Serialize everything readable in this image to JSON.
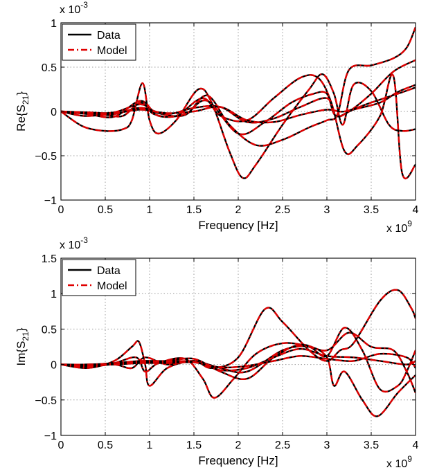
{
  "colors": {
    "data_line": "#000000",
    "model_line": "#e00000",
    "grid": "#9a9a9a",
    "background": "#ffffff"
  },
  "chart_data": [
    {
      "id": "re-s21",
      "type": "line",
      "ylabel_main": "Re{S",
      "ylabel_sub": "21",
      "ylabel_end": "}",
      "xlabel": "Frequency [Hz]",
      "y_exponent_base": "x 10",
      "y_exponent_power": "-3",
      "x_exponent_base": "x 10",
      "x_exponent_power": "9",
      "xlim": [
        0,
        4
      ],
      "ylim": [
        -1,
        1
      ],
      "xticks": [
        0,
        0.5,
        1,
        1.5,
        2,
        2.5,
        3,
        3.5,
        4
      ],
      "yticks": [
        -1,
        -0.5,
        0,
        0.5,
        1
      ],
      "xtick_labels": [
        "0",
        "0.5",
        "1",
        "1.5",
        "2",
        "2.5",
        "3",
        "3.5",
        "4"
      ],
      "ytick_labels": [
        "−1",
        "−0.5",
        "0",
        "0.5",
        "1"
      ],
      "grid": true,
      "legend_position": "top-left",
      "legend": [
        {
          "label": "Data",
          "style": "solid"
        },
        {
          "label": "Model",
          "style": "dashdot"
        }
      ],
      "x_units_note": "x values in units of 10^9 Hz; y values in units of 10^-3",
      "series": [
        {
          "x": [
            0,
            0.25,
            0.5,
            0.7,
            0.8,
            0.92,
            1.0,
            1.1,
            1.3,
            1.55,
            1.7,
            1.9,
            2.05,
            2.2,
            2.5,
            2.8,
            2.95,
            3.08,
            3.18,
            3.3,
            3.5,
            3.7,
            3.85,
            4.0
          ],
          "y": [
            0,
            -0.17,
            -0.22,
            -0.2,
            -0.1,
            0.32,
            -0.1,
            -0.25,
            -0.1,
            0.25,
            0.1,
            -0.45,
            -0.75,
            -0.6,
            -0.15,
            0.25,
            0.42,
            0.2,
            -0.15,
            0.3,
            0.23,
            -0.15,
            -0.22,
            -0.2
          ]
        },
        {
          "x": [
            0,
            0.25,
            0.5,
            0.7,
            0.9,
            1.05,
            1.3,
            1.6,
            1.8,
            2.1,
            2.4,
            2.7,
            2.9,
            3.05,
            3.2,
            3.35,
            3.6,
            3.75,
            3.85,
            4.0
          ],
          "y": [
            0,
            -0.05,
            -0.04,
            -0.05,
            0.1,
            -0.03,
            -0.05,
            0.15,
            -0.05,
            -0.1,
            0.15,
            0.38,
            0.38,
            0.1,
            -0.45,
            -0.38,
            -0.05,
            0.4,
            -0.7,
            -0.6
          ]
        },
        {
          "x": [
            0,
            0.3,
            0.6,
            0.9,
            1.1,
            1.4,
            1.65,
            1.9,
            2.2,
            2.5,
            2.8,
            3.0,
            3.12,
            3.25,
            3.5,
            3.75,
            3.9,
            4.0
          ],
          "y": [
            0,
            -0.02,
            -0.01,
            0.08,
            -0.02,
            -0.04,
            0.18,
            -0.15,
            -0.38,
            -0.32,
            -0.18,
            -0.1,
            -0.03,
            0.47,
            0.52,
            0.6,
            0.72,
            0.95
          ]
        },
        {
          "x": [
            0,
            0.3,
            0.6,
            0.9,
            1.1,
            1.4,
            1.65,
            2.0,
            2.3,
            2.6,
            2.85,
            3.0,
            3.1,
            3.3,
            3.6,
            3.8,
            4.0
          ],
          "y": [
            0,
            -0.03,
            -0.06,
            0.12,
            -0.05,
            -0.03,
            0.12,
            -0.25,
            -0.12,
            0.1,
            0.2,
            0.2,
            -0.05,
            0.02,
            0.1,
            0.22,
            0.3
          ]
        },
        {
          "x": [
            0,
            0.3,
            0.6,
            0.9,
            1.2,
            1.5,
            1.8,
            2.1,
            2.4,
            2.7,
            3.0,
            3.1,
            3.25,
            3.5,
            3.75,
            4.0
          ],
          "y": [
            0,
            -0.02,
            -0.03,
            0.04,
            -0.03,
            0.04,
            0.05,
            -0.12,
            -0.08,
            0.05,
            0.15,
            -0.05,
            0.0,
            0.2,
            0.45,
            0.58
          ]
        },
        {
          "x": [
            0,
            0.3,
            0.6,
            0.9,
            1.2,
            1.5,
            1.8,
            2.1,
            2.4,
            2.7,
            3.0,
            3.2,
            3.5,
            3.8,
            4.0
          ],
          "y": [
            0,
            -0.01,
            -0.02,
            0.02,
            -0.02,
            0.0,
            0.05,
            -0.1,
            -0.12,
            -0.04,
            0.02,
            0.0,
            0.1,
            0.2,
            0.27
          ]
        }
      ]
    },
    {
      "id": "im-s21",
      "type": "line",
      "ylabel_main": "Im{S",
      "ylabel_sub": "21",
      "ylabel_end": "}",
      "xlabel": "Frequency [Hz]",
      "y_exponent_base": "x 10",
      "y_exponent_power": "-3",
      "x_exponent_base": "x 10",
      "x_exponent_power": "9",
      "xlim": [
        0,
        4
      ],
      "ylim": [
        -1,
        1.5
      ],
      "xticks": [
        0,
        0.5,
        1,
        1.5,
        2,
        2.5,
        3,
        3.5,
        4
      ],
      "yticks": [
        -1,
        -0.5,
        0,
        0.5,
        1,
        1.5
      ],
      "xtick_labels": [
        "0",
        "0.5",
        "1",
        "1.5",
        "2",
        "2.5",
        "3",
        "3.5",
        "4"
      ],
      "ytick_labels": [
        "−1",
        "−0.5",
        "0",
        "0.5",
        "1",
        "1.5"
      ],
      "grid": true,
      "legend_position": "top-left",
      "legend": [
        {
          "label": "Data",
          "style": "solid"
        },
        {
          "label": "Model",
          "style": "dashdot"
        }
      ],
      "x_units_note": "x values in units of 10^9 Hz; y values in units of 10^-3",
      "series": [
        {
          "x": [
            0,
            0.3,
            0.6,
            0.8,
            0.88,
            0.95,
            1.0,
            1.2,
            1.5,
            1.7,
            2.0,
            2.3,
            2.5,
            2.8,
            3.0,
            3.15,
            3.3,
            3.6,
            3.8,
            3.95,
            4.0
          ],
          "y": [
            0,
            -0.05,
            0.05,
            0.25,
            0.32,
            0.0,
            -0.3,
            -0.05,
            0.05,
            -0.05,
            0.1,
            0.78,
            0.6,
            0.2,
            0.05,
            0.2,
            0.3,
            0.9,
            1.05,
            0.8,
            0.65
          ]
        },
        {
          "x": [
            0,
            0.3,
            0.6,
            0.85,
            0.95,
            1.1,
            1.4,
            1.6,
            1.73,
            1.95,
            2.2,
            2.5,
            2.8,
            3.0,
            3.2,
            3.4,
            3.6,
            3.8,
            3.9,
            4.0
          ],
          "y": [
            0,
            -0.02,
            0.02,
            0.1,
            -0.1,
            0.02,
            0.08,
            -0.2,
            -0.47,
            -0.2,
            0.15,
            0.3,
            0.25,
            0.12,
            0.52,
            0.2,
            -0.35,
            -0.3,
            -0.1,
            0.2
          ]
        },
        {
          "x": [
            0,
            0.3,
            0.6,
            0.8,
            0.95,
            1.2,
            1.5,
            1.8,
            2.1,
            2.5,
            2.8,
            3.0,
            3.08,
            3.2,
            3.4,
            3.57,
            3.8,
            4.0
          ],
          "y": [
            0,
            -0.03,
            0.0,
            -0.05,
            0.1,
            0.0,
            0.05,
            -0.05,
            -0.1,
            0.2,
            0.25,
            0.1,
            -0.3,
            -0.1,
            -0.5,
            -0.73,
            -0.4,
            -0.15
          ]
        },
        {
          "x": [
            0,
            0.3,
            0.6,
            0.9,
            1.2,
            1.5,
            1.8,
            2.1,
            2.4,
            2.7,
            3.0,
            3.25,
            3.5,
            3.75,
            3.9,
            4.0
          ],
          "y": [
            0,
            0.0,
            0.02,
            0.05,
            0.05,
            0.08,
            -0.1,
            -0.2,
            0.1,
            0.28,
            0.2,
            0.45,
            0.25,
            0.2,
            -0.1,
            -0.4
          ]
        },
        {
          "x": [
            0,
            0.3,
            0.6,
            0.9,
            1.2,
            1.5,
            1.8,
            2.1,
            2.4,
            2.7,
            3.0,
            3.3,
            3.6,
            3.9,
            4.0
          ],
          "y": [
            0,
            0.0,
            0.01,
            0.03,
            0.04,
            0.04,
            -0.08,
            -0.05,
            0.1,
            0.22,
            0.12,
            0.1,
            0.05,
            0.0,
            0.05
          ]
        },
        {
          "x": [
            0,
            0.3,
            0.6,
            0.9,
            1.2,
            1.5,
            1.8,
            2.1,
            2.4,
            2.7,
            3.0,
            3.3,
            3.6,
            3.9,
            4.0
          ],
          "y": [
            0,
            -0.01,
            0.0,
            0.02,
            0.02,
            0.03,
            -0.04,
            -0.02,
            0.05,
            0.12,
            0.08,
            0.05,
            0.15,
            0.1,
            -0.05
          ]
        }
      ]
    }
  ]
}
